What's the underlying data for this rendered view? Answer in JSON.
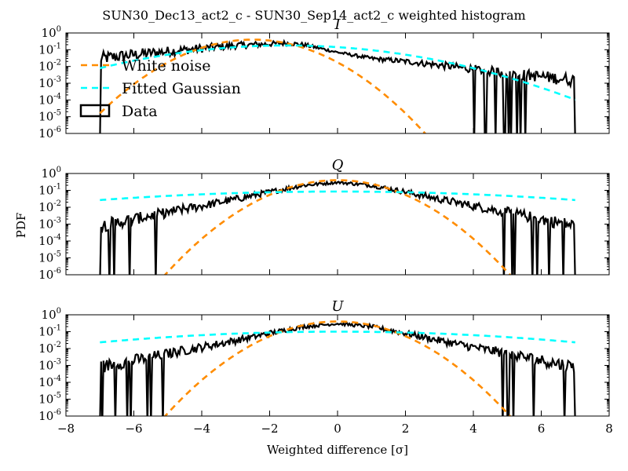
{
  "chart_data": {
    "type": "line",
    "title": "SUN30_Dec13_act2_c - SUN30_Sep14_act2_c weighted histogram",
    "xlabel": "Weighted difference [σ]",
    "ylabel": "PDF",
    "xlim": [
      -8,
      8
    ],
    "ylim": [
      1e-06,
      1
    ],
    "yscale": "log",
    "x_ticks": [
      "−8",
      "−6",
      "−4",
      "−2",
      "0",
      "2",
      "4",
      "6",
      "8"
    ],
    "y_ticks": [
      {
        "base": "10",
        "exp": "0"
      },
      {
        "base": "10",
        "exp": "-1"
      },
      {
        "base": "10",
        "exp": "-2"
      },
      {
        "base": "10",
        "exp": "-3"
      },
      {
        "base": "10",
        "exp": "-4"
      },
      {
        "base": "10",
        "exp": "-5"
      },
      {
        "base": "10",
        "exp": "-6"
      }
    ],
    "legend": {
      "location": "left, upper panel",
      "entries": [
        {
          "label": "White noise",
          "color": "#ff8c00",
          "style": "dashed"
        },
        {
          "label": "Fitted Gaussian",
          "color": "#00ffff",
          "style": "dashed"
        },
        {
          "label": "Data",
          "color": "#000000",
          "style": "box"
        }
      ]
    },
    "colors": {
      "white_noise": "#ff8c00",
      "fitted_gaussian": "#00ffff",
      "data": "#000000"
    },
    "panels": [
      {
        "name": "I",
        "white_noise": {
          "mu": -2.5,
          "sigma": 1.0
        },
        "fitted_gaussian": {
          "mu": -1.5,
          "sigma": 2.2,
          "amp": 0.18
        },
        "data_x_range": [
          -7,
          7
        ],
        "data_points": [
          [
            -7,
            0.03
          ],
          [
            -6,
            0.05
          ],
          [
            -5,
            0.08
          ],
          [
            -4,
            0.12
          ],
          [
            -3,
            0.18
          ],
          [
            -2,
            0.22
          ],
          [
            -1.5,
            0.25
          ],
          [
            -1,
            0.2
          ],
          [
            0,
            0.07
          ],
          [
            1,
            0.03
          ],
          [
            2,
            0.02
          ],
          [
            3,
            0.012
          ],
          [
            4,
            0.007
          ],
          [
            5,
            0.004
          ],
          [
            6,
            0.0025
          ],
          [
            7,
            0.0015
          ]
        ]
      },
      {
        "name": "Q",
        "white_noise": {
          "mu": 0,
          "sigma": 1.0
        },
        "fitted_gaussian": {
          "mu": 0,
          "sigma": 4.6,
          "amp": 0.085
        },
        "data_x_range": [
          -7,
          7
        ],
        "data_points": [
          [
            -7,
            0.0008
          ],
          [
            -6,
            0.002
          ],
          [
            -5,
            0.005
          ],
          [
            -4,
            0.012
          ],
          [
            -3,
            0.03
          ],
          [
            -2,
            0.08
          ],
          [
            -1,
            0.2
          ],
          [
            0,
            0.3
          ],
          [
            1,
            0.2
          ],
          [
            2,
            0.08
          ],
          [
            3,
            0.03
          ],
          [
            4,
            0.012
          ],
          [
            5,
            0.005
          ],
          [
            6,
            0.002
          ],
          [
            7,
            0.0008
          ]
        ]
      },
      {
        "name": "U",
        "white_noise": {
          "mu": 0,
          "sigma": 1.0
        },
        "fitted_gaussian": {
          "mu": 0,
          "sigma": 4.1,
          "amp": 0.1
        },
        "data_x_range": [
          -7,
          7
        ],
        "data_points": [
          [
            -7,
            0.0008
          ],
          [
            -6,
            0.002
          ],
          [
            -5,
            0.005
          ],
          [
            -4,
            0.012
          ],
          [
            -3,
            0.03
          ],
          [
            -2,
            0.08
          ],
          [
            -1,
            0.2
          ],
          [
            0,
            0.3
          ],
          [
            1,
            0.2
          ],
          [
            2,
            0.08
          ],
          [
            3,
            0.03
          ],
          [
            4,
            0.012
          ],
          [
            5,
            0.005
          ],
          [
            6,
            0.002
          ],
          [
            7,
            0.0008
          ]
        ]
      }
    ]
  }
}
